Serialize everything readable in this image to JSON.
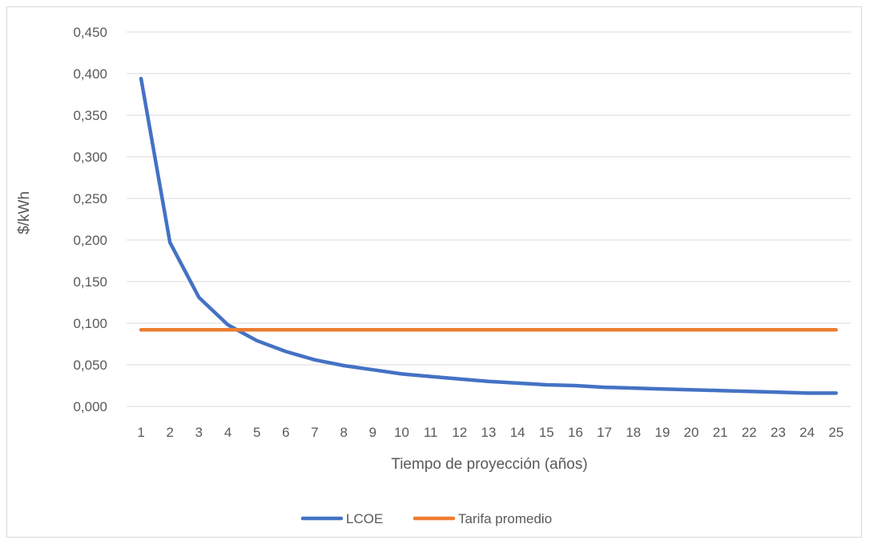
{
  "chart_data": {
    "type": "line",
    "x": [
      1,
      2,
      3,
      4,
      5,
      6,
      7,
      8,
      9,
      10,
      11,
      12,
      13,
      14,
      15,
      16,
      17,
      18,
      19,
      20,
      21,
      22,
      23,
      24,
      25
    ],
    "categories": [
      "1",
      "2",
      "3",
      "4",
      "5",
      "6",
      "7",
      "8",
      "9",
      "10",
      "11",
      "12",
      "13",
      "14",
      "15",
      "16",
      "17",
      "18",
      "19",
      "20",
      "21",
      "22",
      "23",
      "24",
      "25"
    ],
    "xlabel": "Tiempo de proyección (años)",
    "ylabel": "$/kWh",
    "ylim": [
      0,
      0.45
    ],
    "yticks": [
      0,
      0.05,
      0.1,
      0.15,
      0.2,
      0.25,
      0.3,
      0.35,
      0.4,
      0.45
    ],
    "ytick_labels": [
      "0,000",
      "0,050",
      "0,100",
      "0,150",
      "0,200",
      "0,250",
      "0,300",
      "0,350",
      "0,400",
      "0,450"
    ],
    "grid": "horizontal",
    "legend": "bottom",
    "series": [
      {
        "name": "LCOE",
        "color": "#4472C4",
        "values": [
          0.394,
          0.197,
          0.131,
          0.098,
          0.079,
          0.066,
          0.056,
          0.049,
          0.044,
          0.039,
          0.036,
          0.033,
          0.03,
          0.028,
          0.026,
          0.025,
          0.023,
          0.022,
          0.021,
          0.02,
          0.019,
          0.018,
          0.017,
          0.016,
          0.016
        ]
      },
      {
        "name": "Tarifa promedio",
        "color": "#ED7D31",
        "values": [
          0.092,
          0.092,
          0.092,
          0.092,
          0.092,
          0.092,
          0.092,
          0.092,
          0.092,
          0.092,
          0.092,
          0.092,
          0.092,
          0.092,
          0.092,
          0.092,
          0.092,
          0.092,
          0.092,
          0.092,
          0.092,
          0.092,
          0.092,
          0.092,
          0.092
        ]
      }
    ]
  }
}
